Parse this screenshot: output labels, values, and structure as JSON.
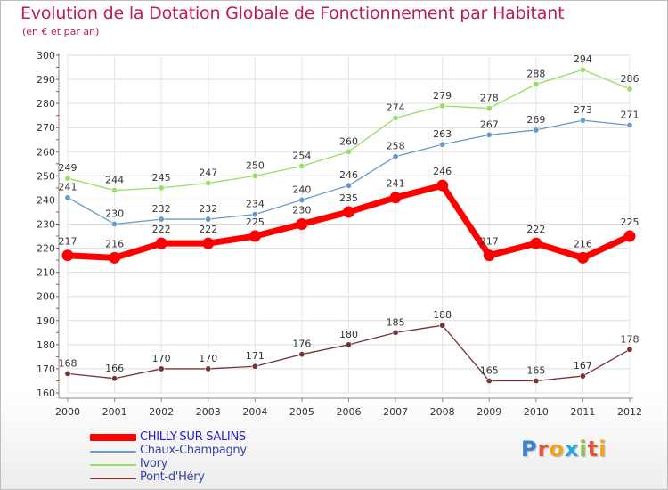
{
  "title": "Evolution de la Dotation Globale de Fonctionnement par Habitant",
  "subtitle": "(en € et par an)",
  "logo": {
    "text": "Proxiti",
    "letters": [
      "P",
      "r",
      "o",
      "x",
      "i",
      "t",
      "i"
    ],
    "colors": [
      "#3a7fd5",
      "#e8543a",
      "#f2a51a",
      "#2aa7d9",
      "#8bc34a",
      "#e8543a",
      "#f2a51a"
    ]
  },
  "chart_data": {
    "type": "line",
    "title": "Evolution de la Dotation Globale de Fonctionnement par Habitant",
    "subtitle": "(en € et par an)",
    "xlabel": "",
    "ylabel": "",
    "x": [
      "2000",
      "2001",
      "2002",
      "2003",
      "2004",
      "2005",
      "2006",
      "2007",
      "2008",
      "2009",
      "2010",
      "2011",
      "2012"
    ],
    "ylim": [
      160,
      300
    ],
    "yticks": [
      "160",
      "170",
      "180",
      "190",
      "200",
      "210",
      "220",
      "230",
      "240",
      "250",
      "260",
      "270",
      "280",
      "290",
      "300"
    ],
    "grid": true,
    "legend_position": "bottom-left",
    "series": [
      {
        "name": "CHILLY-SUR-SALINS",
        "values": [
          217,
          216,
          222,
          222,
          225,
          230,
          235,
          241,
          246,
          217,
          222,
          216,
          225
        ],
        "color": "#ff0000",
        "emphasis": true
      },
      {
        "name": "Chaux-Champagny",
        "values": [
          241,
          230,
          232,
          232,
          234,
          240,
          246,
          258,
          263,
          267,
          269,
          273,
          271
        ],
        "color": "#6699cc",
        "emphasis": false
      },
      {
        "name": "Ivory",
        "values": [
          249,
          244,
          245,
          247,
          250,
          254,
          260,
          274,
          279,
          278,
          288,
          294,
          286
        ],
        "color": "#99dd66",
        "emphasis": false
      },
      {
        "name": "Pont-d'Héry",
        "values": [
          168,
          166,
          170,
          170,
          171,
          176,
          180,
          185,
          188,
          165,
          165,
          167,
          178
        ],
        "color": "#773333",
        "emphasis": false
      }
    ]
  }
}
